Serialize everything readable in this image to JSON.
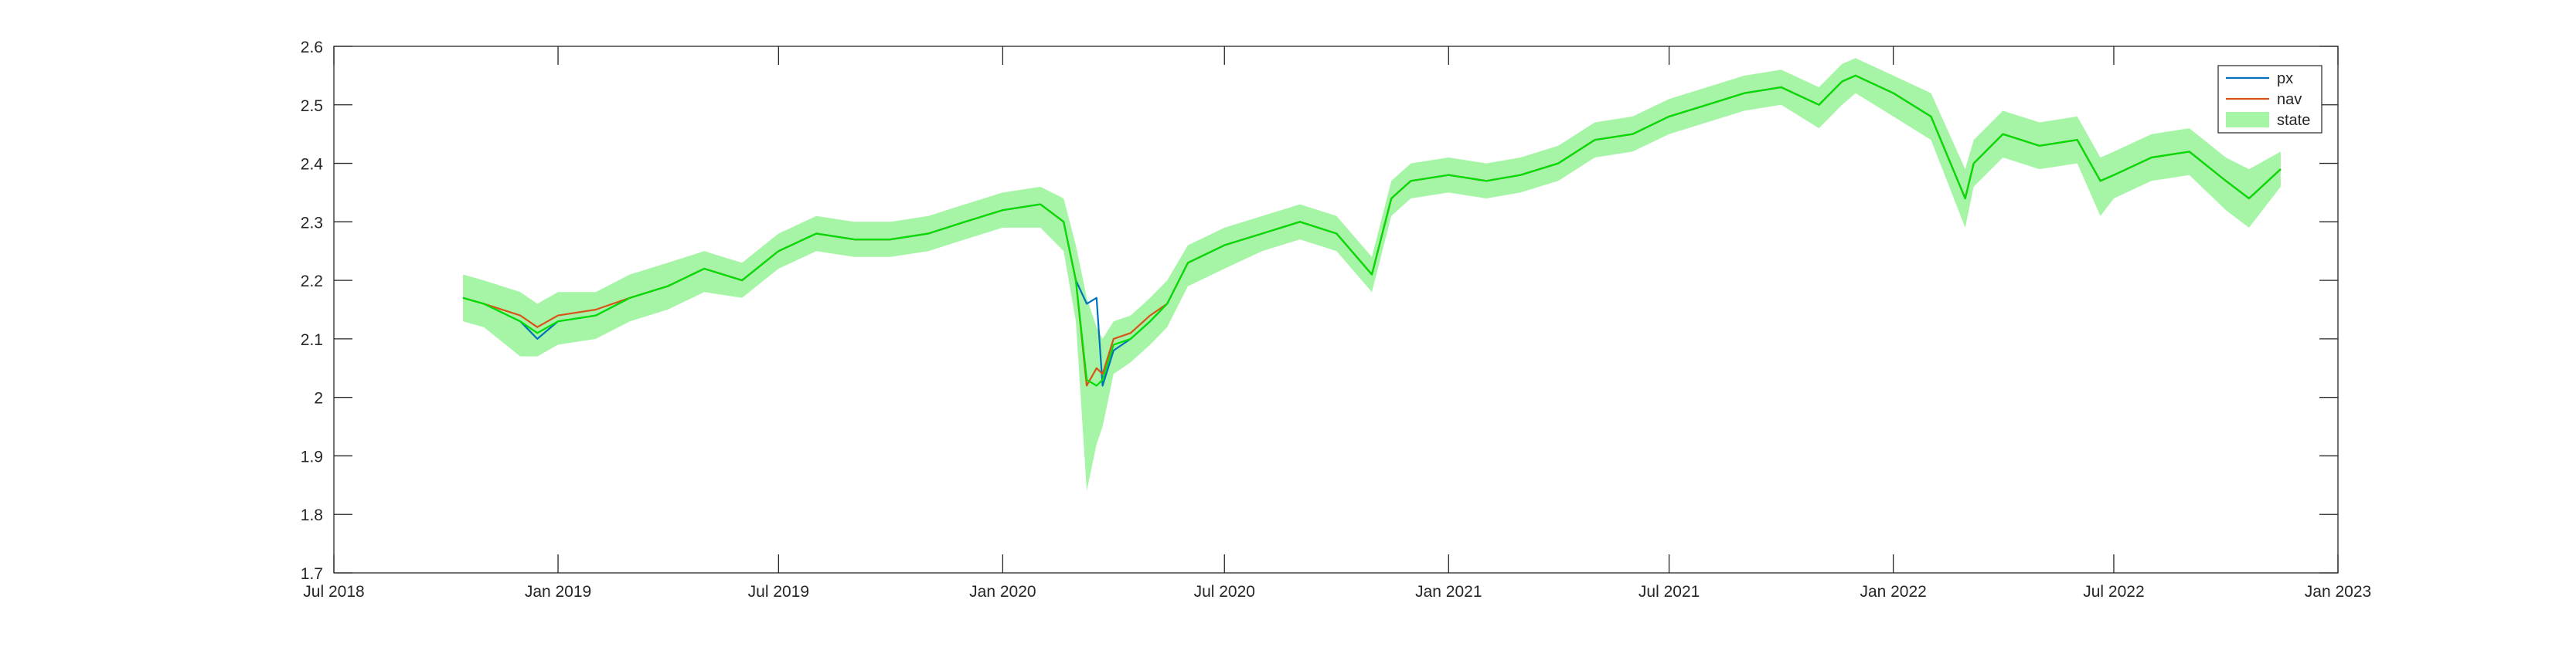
{
  "chart_data": {
    "type": "line",
    "title": "",
    "xlabel": "",
    "ylabel": "",
    "xlim": [
      "2018-07-01",
      "2023-01-01"
    ],
    "ylim": [
      1.7,
      2.6
    ],
    "grid": false,
    "legend_position": "top-right",
    "xticks": [
      {
        "date": "2018-07-01",
        "label": "Jul 2018"
      },
      {
        "date": "2019-01-01",
        "label": "Jan 2019"
      },
      {
        "date": "2019-07-01",
        "label": "Jul 2019"
      },
      {
        "date": "2020-01-01",
        "label": "Jan 2020"
      },
      {
        "date": "2020-07-01",
        "label": "Jul 2020"
      },
      {
        "date": "2021-01-01",
        "label": "Jan 2021"
      },
      {
        "date": "2021-07-01",
        "label": "Jul 2021"
      },
      {
        "date": "2022-01-01",
        "label": "Jan 2022"
      },
      {
        "date": "2022-07-01",
        "label": "Jul 2022"
      },
      {
        "date": "2023-01-01",
        "label": "Jan 2023"
      }
    ],
    "yticks": [
      {
        "value": 1.7,
        "label": "1.7"
      },
      {
        "value": 1.8,
        "label": "1.8"
      },
      {
        "value": 1.9,
        "label": "1.9"
      },
      {
        "value": 2.0,
        "label": "2"
      },
      {
        "value": 2.1,
        "label": "2.1"
      },
      {
        "value": 2.2,
        "label": "2.2"
      },
      {
        "value": 2.3,
        "label": "2.3"
      },
      {
        "value": 2.4,
        "label": "2.4"
      },
      {
        "value": 2.5,
        "label": "2.5"
      },
      {
        "value": 2.6,
        "label": "2.6"
      }
    ],
    "x": [
      "2018-10-15",
      "2018-11-01",
      "2018-12-01",
      "2018-12-15",
      "2019-01-01",
      "2019-02-01",
      "2019-03-01",
      "2019-04-01",
      "2019-05-01",
      "2019-06-01",
      "2019-07-01",
      "2019-08-01",
      "2019-09-01",
      "2019-10-01",
      "2019-11-01",
      "2019-12-01",
      "2020-01-01",
      "2020-02-01",
      "2020-02-20",
      "2020-03-01",
      "2020-03-10",
      "2020-03-18",
      "2020-03-23",
      "2020-04-01",
      "2020-04-15",
      "2020-05-01",
      "2020-05-15",
      "2020-06-01",
      "2020-07-01",
      "2020-08-01",
      "2020-09-01",
      "2020-10-01",
      "2020-10-30",
      "2020-11-15",
      "2020-12-01",
      "2021-01-01",
      "2021-02-01",
      "2021-03-01",
      "2021-04-01",
      "2021-05-01",
      "2021-06-01",
      "2021-07-01",
      "2021-08-01",
      "2021-09-01",
      "2021-10-01",
      "2021-11-01",
      "2021-11-20",
      "2021-12-01",
      "2022-01-01",
      "2022-02-01",
      "2022-03-01",
      "2022-03-08",
      "2022-04-01",
      "2022-05-01",
      "2022-06-01",
      "2022-06-20",
      "2022-07-01",
      "2022-08-01",
      "2022-09-01",
      "2022-10-01",
      "2022-10-20",
      "2022-11-15"
    ],
    "series": [
      {
        "name": "px",
        "color": "#0072BD",
        "values": [
          2.17,
          2.16,
          2.13,
          2.1,
          2.13,
          2.14,
          2.17,
          2.19,
          2.22,
          2.2,
          2.25,
          2.28,
          2.27,
          2.27,
          2.28,
          2.3,
          2.32,
          2.33,
          2.3,
          2.2,
          2.16,
          2.17,
          2.02,
          2.08,
          2.1,
          2.13,
          2.16,
          2.23,
          2.26,
          2.28,
          2.3,
          2.28,
          2.21,
          2.34,
          2.37,
          2.38,
          2.37,
          2.38,
          2.4,
          2.44,
          2.45,
          2.48,
          2.5,
          2.52,
          2.53,
          2.5,
          2.54,
          2.55,
          2.52,
          2.48,
          2.34,
          2.4,
          2.45,
          2.43,
          2.44,
          2.37,
          2.38,
          2.41,
          2.42,
          2.37,
          2.34,
          2.39
        ]
      },
      {
        "name": "nav",
        "color": "#D95319",
        "values": [
          2.17,
          2.16,
          2.14,
          2.12,
          2.14,
          2.15,
          2.17,
          2.19,
          2.22,
          2.2,
          2.25,
          2.28,
          2.27,
          2.27,
          2.28,
          2.3,
          2.32,
          2.33,
          2.3,
          2.2,
          2.02,
          2.05,
          2.04,
          2.1,
          2.11,
          2.14,
          2.16,
          2.23,
          2.26,
          2.28,
          2.3,
          2.28,
          2.21,
          2.34,
          2.37,
          2.38,
          2.37,
          2.38,
          2.4,
          2.44,
          2.45,
          2.48,
          2.5,
          2.52,
          2.53,
          2.5,
          2.54,
          2.55,
          2.52,
          2.48,
          2.34,
          2.4,
          2.45,
          2.43,
          2.44,
          2.37,
          2.38,
          2.41,
          2.42,
          2.37,
          2.34,
          2.39
        ]
      },
      {
        "name": "state",
        "color": "#00E000",
        "band_color": "#A6F5A6",
        "values": [
          2.17,
          2.16,
          2.13,
          2.11,
          2.13,
          2.14,
          2.17,
          2.19,
          2.22,
          2.2,
          2.25,
          2.28,
          2.27,
          2.27,
          2.28,
          2.3,
          2.32,
          2.33,
          2.3,
          2.2,
          2.03,
          2.02,
          2.03,
          2.09,
          2.1,
          2.13,
          2.16,
          2.23,
          2.26,
          2.28,
          2.3,
          2.28,
          2.21,
          2.34,
          2.37,
          2.38,
          2.37,
          2.38,
          2.4,
          2.44,
          2.45,
          2.48,
          2.5,
          2.52,
          2.53,
          2.5,
          2.54,
          2.55,
          2.52,
          2.48,
          2.34,
          2.4,
          2.45,
          2.43,
          2.44,
          2.37,
          2.38,
          2.41,
          2.42,
          2.37,
          2.34,
          2.39
        ],
        "lower": [
          2.13,
          2.12,
          2.07,
          2.07,
          2.09,
          2.1,
          2.13,
          2.15,
          2.18,
          2.17,
          2.22,
          2.25,
          2.24,
          2.24,
          2.25,
          2.27,
          2.29,
          2.29,
          2.25,
          2.13,
          1.84,
          1.92,
          1.95,
          2.04,
          2.06,
          2.09,
          2.12,
          2.19,
          2.22,
          2.25,
          2.27,
          2.25,
          2.18,
          2.31,
          2.34,
          2.35,
          2.34,
          2.35,
          2.37,
          2.41,
          2.42,
          2.45,
          2.47,
          2.49,
          2.5,
          2.46,
          2.5,
          2.52,
          2.48,
          2.44,
          2.29,
          2.36,
          2.41,
          2.39,
          2.4,
          2.31,
          2.34,
          2.37,
          2.38,
          2.32,
          2.29,
          2.36
        ],
        "upper": [
          2.21,
          2.2,
          2.18,
          2.16,
          2.18,
          2.18,
          2.21,
          2.23,
          2.25,
          2.23,
          2.28,
          2.31,
          2.3,
          2.3,
          2.31,
          2.33,
          2.35,
          2.36,
          2.34,
          2.26,
          2.17,
          2.12,
          2.1,
          2.13,
          2.14,
          2.17,
          2.2,
          2.26,
          2.29,
          2.31,
          2.33,
          2.31,
          2.24,
          2.37,
          2.4,
          2.41,
          2.4,
          2.41,
          2.43,
          2.47,
          2.48,
          2.51,
          2.53,
          2.55,
          2.56,
          2.53,
          2.57,
          2.58,
          2.55,
          2.52,
          2.39,
          2.44,
          2.49,
          2.47,
          2.48,
          2.41,
          2.42,
          2.45,
          2.46,
          2.41,
          2.39,
          2.42
        ]
      }
    ]
  }
}
